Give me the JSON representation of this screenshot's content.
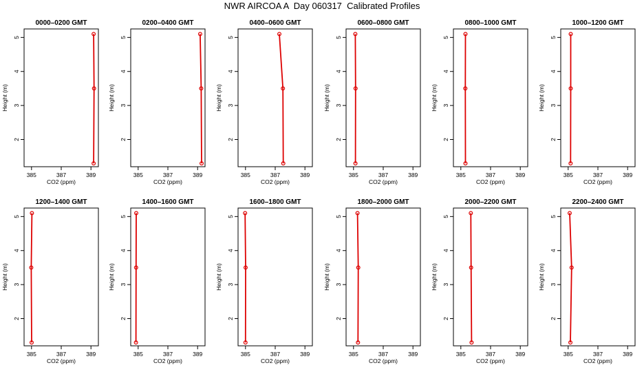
{
  "title": "NWR AIRCOA A  Day 060317  Calibrated Profiles",
  "colors": {
    "profile": "#dd0000",
    "axis": "#000000"
  },
  "chart_data": [
    {
      "type": "line",
      "title": "0000–0200 GMT",
      "xlabel": "CO2 (ppm)",
      "ylabel": "Height (m)",
      "xlim": [
        384.5,
        389.5
      ],
      "ylim": [
        1.2,
        5.25
      ],
      "xticks": [
        385,
        387,
        389
      ],
      "yticks": [
        2,
        3,
        4,
        5
      ],
      "grid": false,
      "series": [
        {
          "x": [
            389.18,
            389.21,
            389.18
          ],
          "y": [
            1.3,
            3.5,
            5.1
          ]
        }
      ]
    },
    {
      "type": "line",
      "title": "0200–0400 GMT",
      "xlabel": "CO2 (ppm)",
      "ylabel": "Height (m)",
      "xlim": [
        384.5,
        389.5
      ],
      "ylim": [
        1.2,
        5.25
      ],
      "xticks": [
        385,
        387,
        389
      ],
      "yticks": [
        2,
        3,
        4,
        5
      ],
      "grid": false,
      "series": [
        {
          "x": [
            389.27,
            389.24,
            389.17
          ],
          "y": [
            1.3,
            3.5,
            5.1
          ]
        }
      ]
    },
    {
      "type": "line",
      "title": "0400–0600 GMT",
      "xlabel": "CO2 (ppm)",
      "ylabel": "Height (m)",
      "xlim": [
        384.5,
        389.5
      ],
      "ylim": [
        1.2,
        5.25
      ],
      "xticks": [
        385,
        387,
        389
      ],
      "yticks": [
        2,
        3,
        4,
        5
      ],
      "grid": false,
      "series": [
        {
          "x": [
            387.54,
            387.52,
            387.28
          ],
          "y": [
            1.3,
            3.5,
            5.1
          ]
        }
      ]
    },
    {
      "type": "line",
      "title": "0600–0800 GMT",
      "xlabel": "CO2 (ppm)",
      "ylabel": "Height (m)",
      "xlim": [
        384.5,
        389.5
      ],
      "ylim": [
        1.2,
        5.25
      ],
      "xticks": [
        385,
        387,
        389
      ],
      "yticks": [
        2,
        3,
        4,
        5
      ],
      "grid": false,
      "series": [
        {
          "x": [
            385.13,
            385.14,
            385.12
          ],
          "y": [
            1.3,
            3.5,
            5.1
          ]
        }
      ]
    },
    {
      "type": "line",
      "title": "0800–1000 GMT",
      "xlabel": "CO2 (ppm)",
      "ylabel": "Height (m)",
      "xlim": [
        384.5,
        389.5
      ],
      "ylim": [
        1.2,
        5.25
      ],
      "xticks": [
        385,
        387,
        389
      ],
      "yticks": [
        2,
        3,
        4,
        5
      ],
      "grid": false,
      "series": [
        {
          "x": [
            385.31,
            385.3,
            385.31
          ],
          "y": [
            1.3,
            3.5,
            5.1
          ]
        }
      ]
    },
    {
      "type": "line",
      "title": "1000–1200 GMT",
      "xlabel": "CO2 (ppm)",
      "ylabel": "Height (m)",
      "xlim": [
        384.5,
        389.5
      ],
      "ylim": [
        1.2,
        5.25
      ],
      "xticks": [
        385,
        387,
        389
      ],
      "yticks": [
        2,
        3,
        4,
        5
      ],
      "grid": false,
      "series": [
        {
          "x": [
            385.16,
            385.17,
            385.17
          ],
          "y": [
            1.3,
            3.5,
            5.1
          ]
        }
      ]
    },
    {
      "type": "line",
      "title": "1200–1400 GMT",
      "xlabel": "CO2 (ppm)",
      "ylabel": "Height (m)",
      "xlim": [
        384.5,
        389.5
      ],
      "ylim": [
        1.2,
        5.25
      ],
      "xticks": [
        385,
        387,
        389
      ],
      "yticks": [
        2,
        3,
        4,
        5
      ],
      "grid": false,
      "series": [
        {
          "x": [
            385.01,
            384.98,
            385.03
          ],
          "y": [
            1.3,
            3.5,
            5.1
          ]
        }
      ]
    },
    {
      "type": "line",
      "title": "1400–1600 GMT",
      "xlabel": "CO2 (ppm)",
      "ylabel": "Height (m)",
      "xlim": [
        384.5,
        389.5
      ],
      "ylim": [
        1.2,
        5.25
      ],
      "xticks": [
        385,
        387,
        389
      ],
      "yticks": [
        2,
        3,
        4,
        5
      ],
      "grid": false,
      "series": [
        {
          "x": [
            384.85,
            384.86,
            384.87
          ],
          "y": [
            1.3,
            3.5,
            5.1
          ]
        }
      ]
    },
    {
      "type": "line",
      "title": "1600–1800 GMT",
      "xlabel": "CO2 (ppm)",
      "ylabel": "Height (m)",
      "xlim": [
        384.5,
        389.5
      ],
      "ylim": [
        1.2,
        5.25
      ],
      "xticks": [
        385,
        387,
        389
      ],
      "yticks": [
        2,
        3,
        4,
        5
      ],
      "grid": false,
      "series": [
        {
          "x": [
            385.0,
            385.01,
            384.97
          ],
          "y": [
            1.3,
            3.5,
            5.1
          ]
        }
      ]
    },
    {
      "type": "line",
      "title": "1800–2000 GMT",
      "xlabel": "CO2 (ppm)",
      "ylabel": "Height (m)",
      "xlim": [
        384.5,
        389.5
      ],
      "ylim": [
        1.2,
        5.25
      ],
      "xticks": [
        385,
        387,
        389
      ],
      "yticks": [
        2,
        3,
        4,
        5
      ],
      "grid": false,
      "series": [
        {
          "x": [
            385.3,
            385.32,
            385.27
          ],
          "y": [
            1.3,
            3.5,
            5.1
          ]
        }
      ]
    },
    {
      "type": "line",
      "title": "2000–2200 GMT",
      "xlabel": "CO2 (ppm)",
      "ylabel": "Height (m)",
      "xlim": [
        384.5,
        389.5
      ],
      "ylim": [
        1.2,
        5.25
      ],
      "xticks": [
        385,
        387,
        389
      ],
      "yticks": [
        2,
        3,
        4,
        5
      ],
      "grid": false,
      "series": [
        {
          "x": [
            385.72,
            385.69,
            385.67
          ],
          "y": [
            1.3,
            3.5,
            5.1
          ]
        }
      ]
    },
    {
      "type": "line",
      "title": "2200–2400 GMT",
      "xlabel": "CO2 (ppm)",
      "ylabel": "Height (m)",
      "xlim": [
        384.5,
        389.5
      ],
      "ylim": [
        1.2,
        5.25
      ],
      "xticks": [
        385,
        387,
        389
      ],
      "yticks": [
        2,
        3,
        4,
        5
      ],
      "grid": false,
      "series": [
        {
          "x": [
            385.15,
            385.23,
            385.1
          ],
          "y": [
            1.3,
            3.5,
            5.1
          ]
        }
      ]
    }
  ]
}
